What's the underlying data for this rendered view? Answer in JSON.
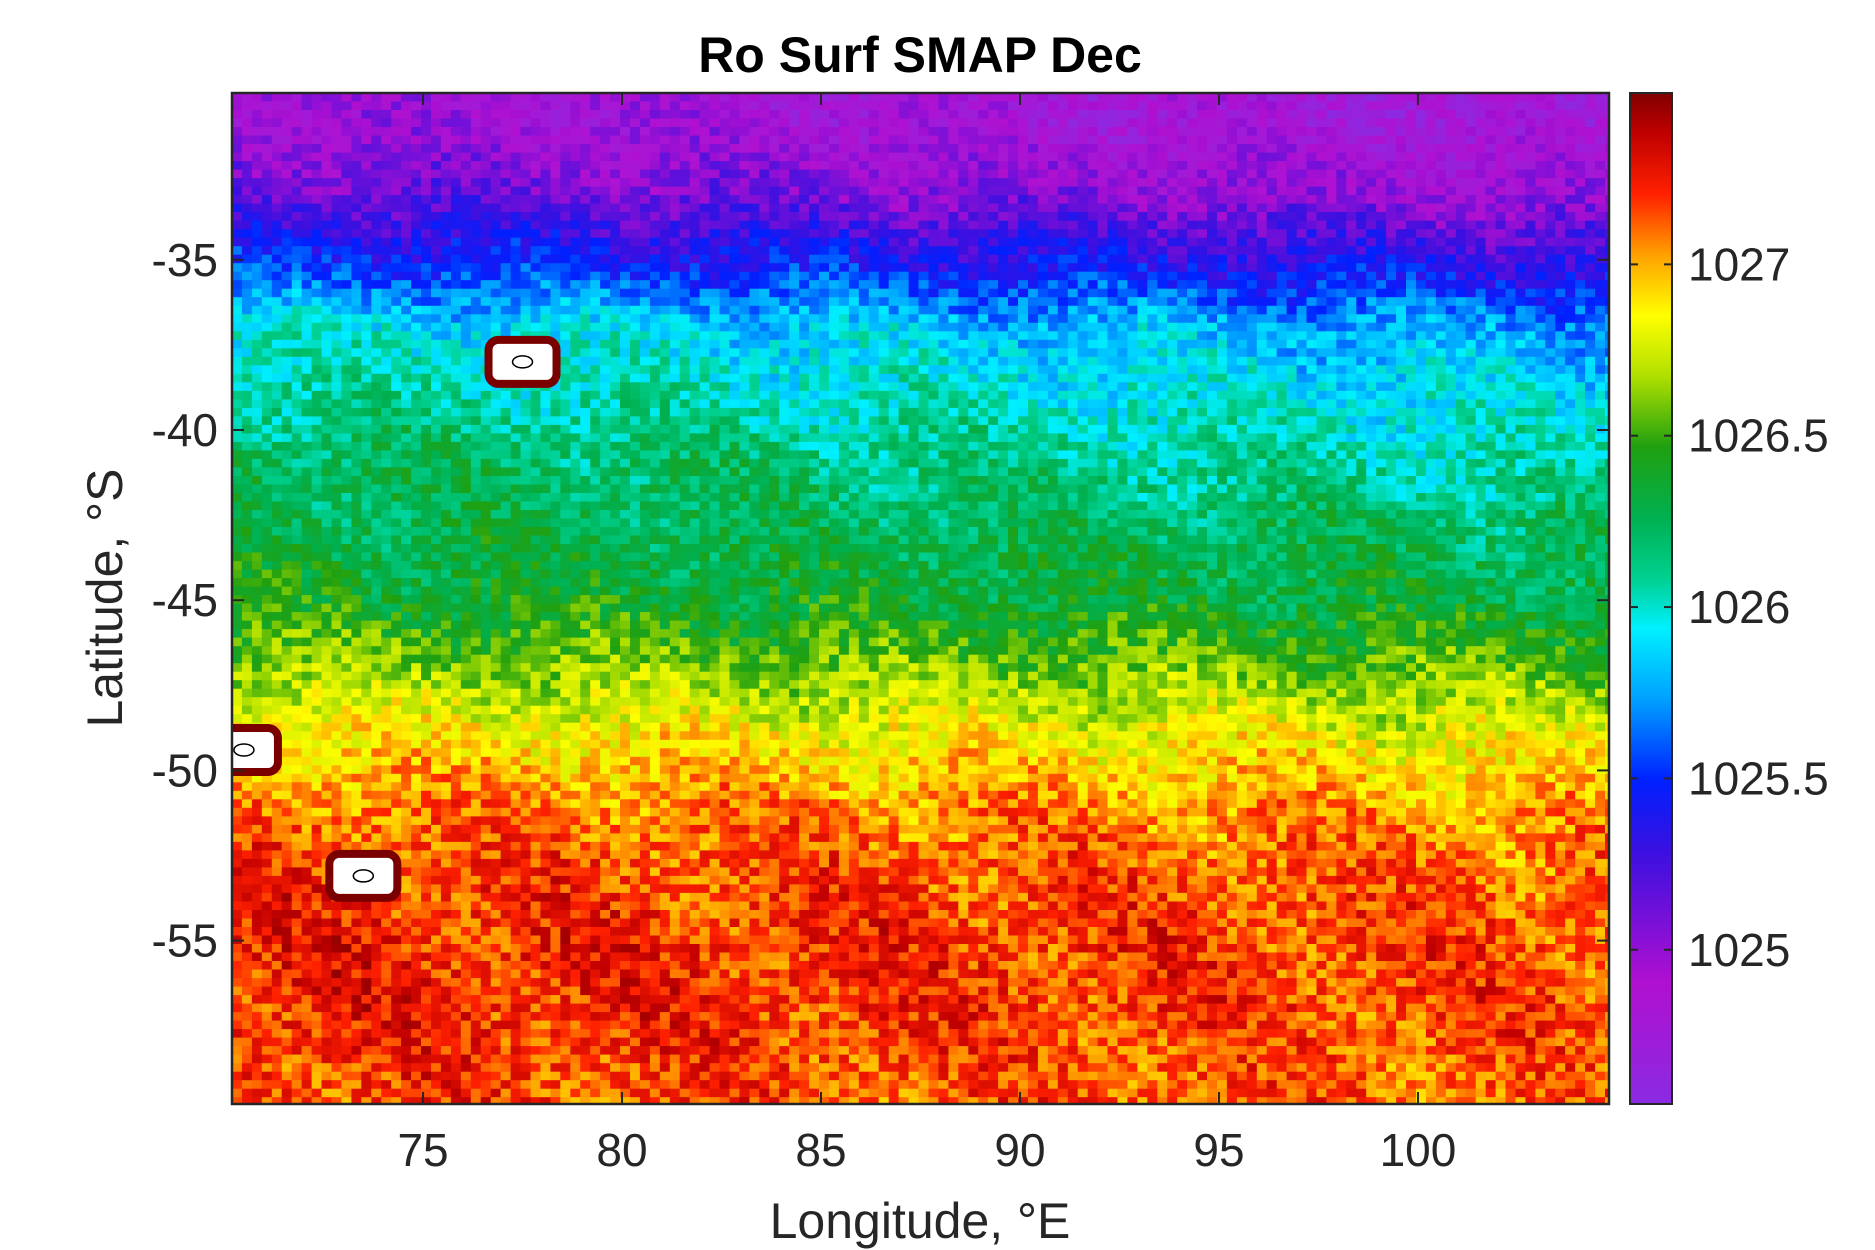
{
  "chart_data": {
    "type": "heatmap",
    "title": "Ro Surf SMAP Dec",
    "xlabel": "Longitude, °E",
    "ylabel": "Latitude, °S",
    "xlim": [
      70.2,
      104.8
    ],
    "ylim": [
      -59.8,
      -30.1
    ],
    "xticks": [
      75,
      80,
      85,
      90,
      95,
      100
    ],
    "xtick_labels": [
      "75",
      "80",
      "85",
      "90",
      "95",
      "100"
    ],
    "yticks": [
      -35,
      -40,
      -45,
      -50,
      -55
    ],
    "ytick_labels": [
      "-35",
      "-40",
      "-45",
      "-50",
      "-55"
    ],
    "colorbar": {
      "location": "right",
      "colormap": "jet-like (purple-blue-cyan-green-yellow-red-darkred)",
      "clim": [
        1024.55,
        1027.5
      ],
      "ticks": [
        1025,
        1025.5,
        1026,
        1026.5,
        1027
      ],
      "tick_labels": [
        "1025",
        "1025.5",
        "1026",
        "1026.5",
        "1027"
      ]
    },
    "grid": false,
    "field_profile": {
      "description_lat": [
        -31,
        -33,
        -35,
        -37,
        -39,
        -41,
        -43,
        -45,
        -47,
        -49,
        -51,
        -53,
        -55,
        -57,
        -59
      ],
      "mean_density": [
        1024.85,
        1025.05,
        1025.4,
        1025.85,
        1026.0,
        1026.15,
        1026.25,
        1026.35,
        1026.6,
        1026.85,
        1027.05,
        1027.15,
        1027.2,
        1027.2,
        1027.15
      ]
    },
    "land_masks": [
      {
        "lon": 70.5,
        "lat": -49.4
      },
      {
        "lon": 73.5,
        "lat": -53.1
      },
      {
        "lon": 77.5,
        "lat": -38.0
      }
    ]
  }
}
